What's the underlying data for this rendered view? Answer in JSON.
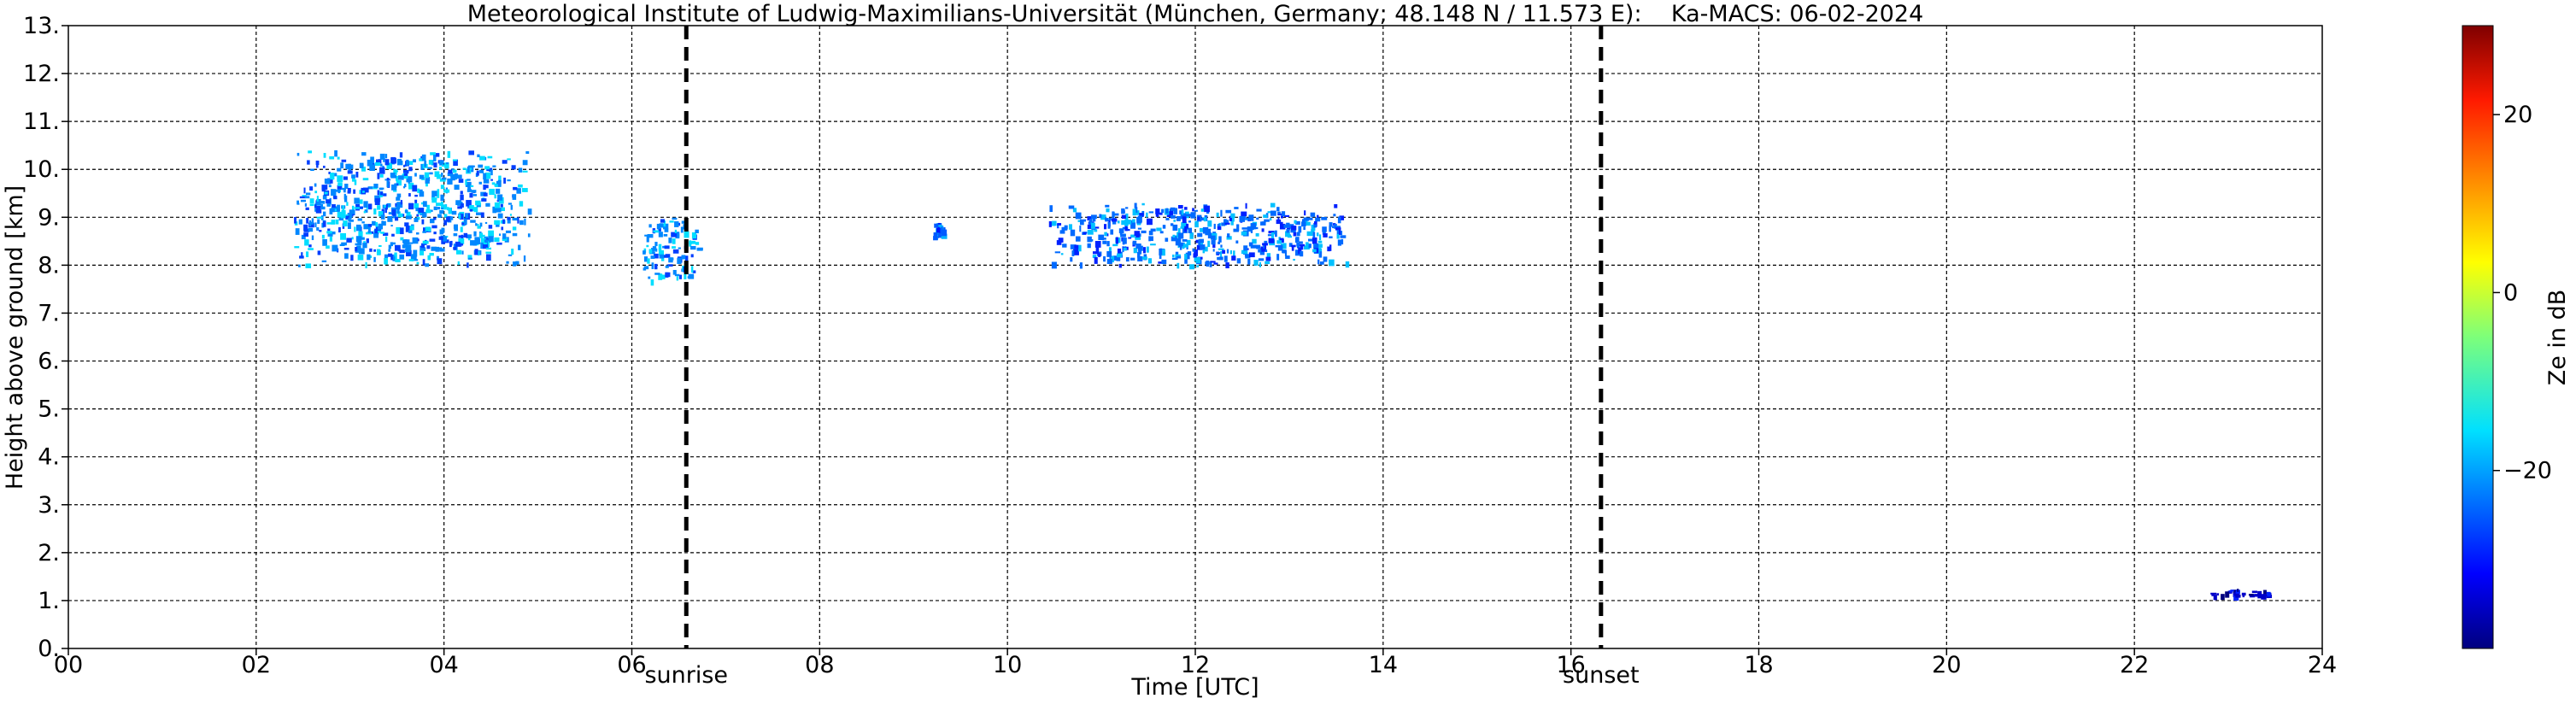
{
  "chart_data": {
    "type": "heatmap",
    "title": "Meteorological Institute of Ludwig-Maximilians-Universität (München, Germany; 48.148 N / 11.573 E):    Ka-MACS: 06-02-2024",
    "xlabel": "Time [UTC]",
    "ylabel": "Height above ground [km]",
    "xlim": [
      0,
      24
    ],
    "ylim": [
      0,
      13
    ],
    "x_ticks": [
      0,
      2,
      4,
      6,
      8,
      10,
      12,
      14,
      16,
      18,
      20,
      22,
      24
    ],
    "x_tick_labels": [
      "00",
      "02",
      "04",
      "06",
      "08",
      "10",
      "12",
      "14",
      "16",
      "18",
      "20",
      "22",
      "24"
    ],
    "y_ticks": [
      0,
      1,
      2,
      3,
      4,
      5,
      6,
      7,
      8,
      9,
      10,
      11,
      12,
      13
    ],
    "y_tick_labels": [
      "0.",
      "1.",
      "2.",
      "3.",
      "4.",
      "5.",
      "6.",
      "7.",
      "8.",
      "9.",
      "10.",
      "11.",
      "12.",
      "13."
    ],
    "grid": true,
    "events": [
      {
        "label": "sunrise",
        "time": 6.58
      },
      {
        "label": "sunset",
        "time": 16.32
      }
    ],
    "colorbar": {
      "label": "Ze in dB",
      "range": [
        -40,
        30
      ],
      "ticks": [
        20,
        0,
        -20
      ],
      "tick_labels": [
        "20",
        "0",
        "−20"
      ],
      "colormap": "jet"
    },
    "echoes": [
      {
        "t_start": 2.4,
        "t_end": 4.9,
        "h_bottom": 8.0,
        "h_top": 10.4,
        "ze_db": -22
      },
      {
        "t_start": 6.1,
        "t_end": 6.7,
        "h_bottom": 7.7,
        "h_top": 9.0,
        "ze_db": -22
      },
      {
        "t_start": 9.2,
        "t_end": 9.3,
        "h_bottom": 8.6,
        "h_top": 8.9,
        "ze_db": -25
      },
      {
        "t_start": 10.4,
        "t_end": 13.6,
        "h_bottom": 8.0,
        "h_top": 9.3,
        "ze_db": -24
      },
      {
        "t_start": 22.8,
        "t_end": 23.5,
        "h_bottom": 1.1,
        "h_top": 1.25,
        "ze_db": -35
      }
    ]
  }
}
